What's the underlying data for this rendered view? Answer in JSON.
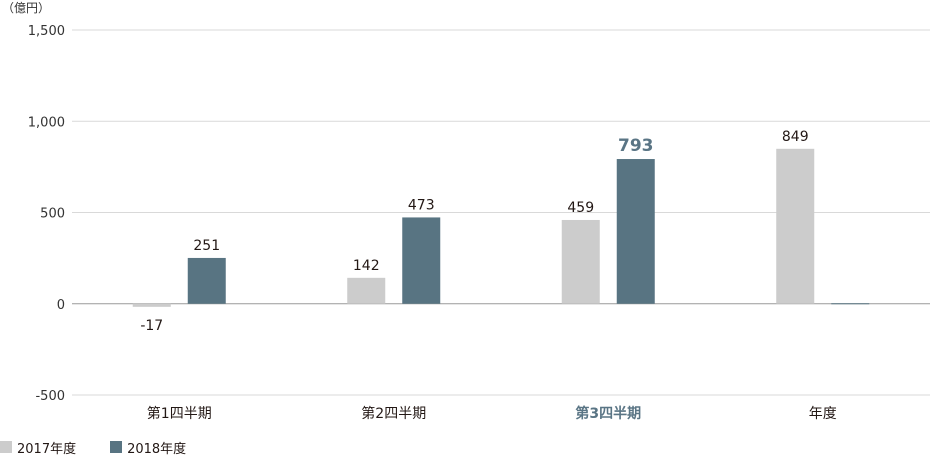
{
  "chart_data": {
    "type": "bar",
    "unit_label": "（億円）",
    "categories": [
      "第1四半期",
      "第2四半期",
      "第3四半期",
      "年度"
    ],
    "highlight_category": "第3四半期",
    "series": [
      {
        "name": "2017年度",
        "color": "#cccccc",
        "values": [
          -17,
          142,
          459,
          849
        ]
      },
      {
        "name": "2018年度",
        "color": "#587482",
        "values": [
          251,
          473,
          793,
          null
        ]
      }
    ],
    "value_labels": [
      [
        "-17",
        "142",
        "459",
        "849"
      ],
      [
        "251",
        "473",
        "793",
        ""
      ]
    ],
    "highlight_value": "793",
    "yticks": [
      1500,
      1000,
      500,
      0,
      -500
    ],
    "ytick_labels": [
      "1,500",
      "1,000",
      "500",
      "0",
      "-500"
    ],
    "ylim": [
      -500,
      1500
    ],
    "grid": true,
    "legend_position": "bottom-left"
  }
}
